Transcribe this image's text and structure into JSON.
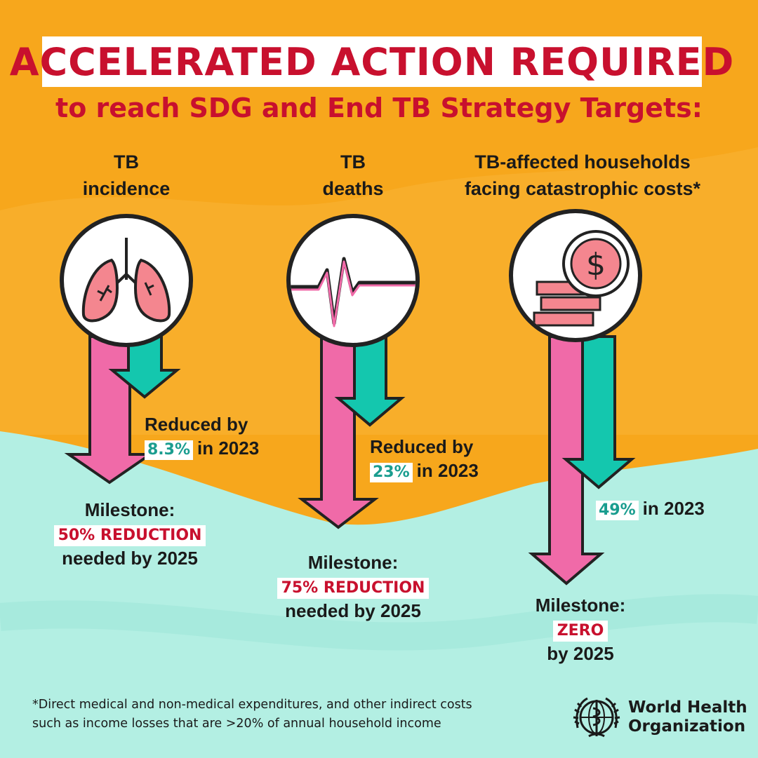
{
  "header": {
    "title": "ACCELERATED ACTION REQUIRED",
    "subtitle": "to reach SDG and End TB Strategy Targets:"
  },
  "columns": [
    {
      "label_line1": "TB",
      "label_line2": "incidence",
      "icon": "lungs-icon",
      "reduced_prefix": "Reduced by",
      "current_value": "8.3%",
      "current_suffix": "in 2023",
      "milestone_label": "Milestone:",
      "milestone_value": "50% REDUCTION",
      "milestone_suffix": "needed by 2025"
    },
    {
      "label_line1": "TB",
      "label_line2": "deaths",
      "icon": "heartbeat-icon",
      "reduced_prefix": "Reduced by",
      "current_value": "23%",
      "current_suffix": "in 2023",
      "milestone_label": "Milestone:",
      "milestone_value": "75% REDUCTION",
      "milestone_suffix": "needed by 2025"
    },
    {
      "label_line1": "TB-affected households",
      "label_line2": "facing catastrophic costs*",
      "icon": "coins-icon",
      "current_value": "49%",
      "current_suffix": "in 2023",
      "milestone_label": "Milestone:",
      "milestone_value": "ZERO",
      "milestone_suffix": "by 2025"
    }
  ],
  "footnote": {
    "line1": "*Direct medical and non-medical expenditures, and other indirect costs",
    "line2": "such as income losses that are >20% of annual household income"
  },
  "logo": {
    "line1": "World Health",
    "line2": "Organization"
  },
  "colors": {
    "orange": "#f7a71c",
    "mint": "#b3efe3",
    "red": "#c8102e",
    "pink": "#f06aa8",
    "teal": "#14c7ae"
  }
}
